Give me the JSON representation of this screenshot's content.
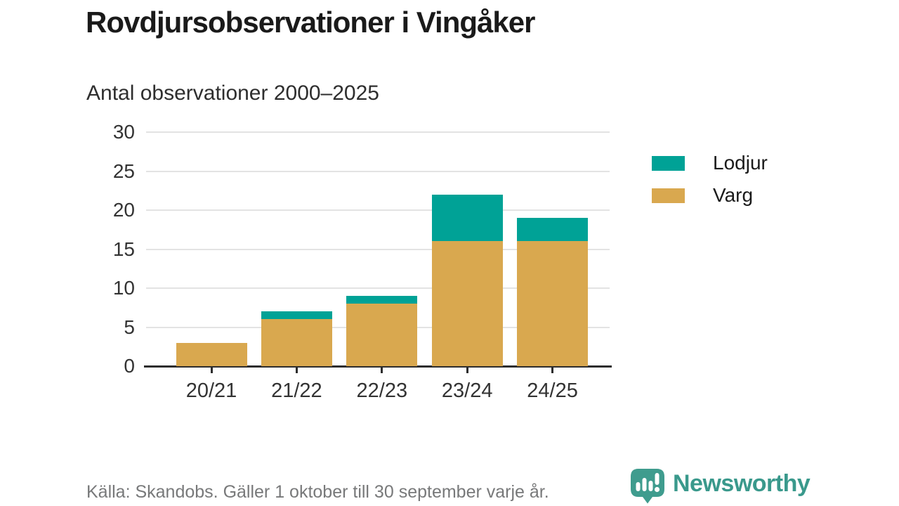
{
  "header": {
    "title": "Rovdjursobservationer i Vingåker",
    "subtitle": "Antal observationer 2000–2025"
  },
  "chart_data": {
    "type": "bar",
    "stacked": true,
    "title": "Rovdjursobservationer i Vingåker",
    "subtitle": "Antal observationer 2000–2025",
    "categories": [
      "20/21",
      "21/22",
      "22/23",
      "23/24",
      "24/25"
    ],
    "series": [
      {
        "name": "Varg",
        "color": "#d9a84f",
        "values": [
          3,
          6,
          8,
          16,
          16
        ]
      },
      {
        "name": "Lodjur",
        "color": "#00a296",
        "values": [
          0,
          1,
          1,
          6,
          3
        ]
      }
    ],
    "totals": [
      3,
      7,
      9,
      22,
      19
    ],
    "ylim": [
      0,
      30
    ],
    "yticks": [
      0,
      5,
      10,
      15,
      20,
      25,
      30
    ],
    "xlabel": "",
    "ylabel": "",
    "grid": "horizontal",
    "legend_position": "right",
    "legend_order": [
      "Lodjur",
      "Varg"
    ]
  },
  "footer": {
    "source": "Källa: Skandobs. Gäller 1 oktober till 30 september varje år.",
    "brand": "Newsworthy"
  },
  "colors": {
    "lodjur": "#00a296",
    "varg": "#d9a84f",
    "axis": "#2d2d2d",
    "grid": "#e3e3e3",
    "title_text": "#1a1a1a",
    "axis_text": "#333333",
    "source_text": "#78797a",
    "brand_teal": "#3a998c"
  }
}
